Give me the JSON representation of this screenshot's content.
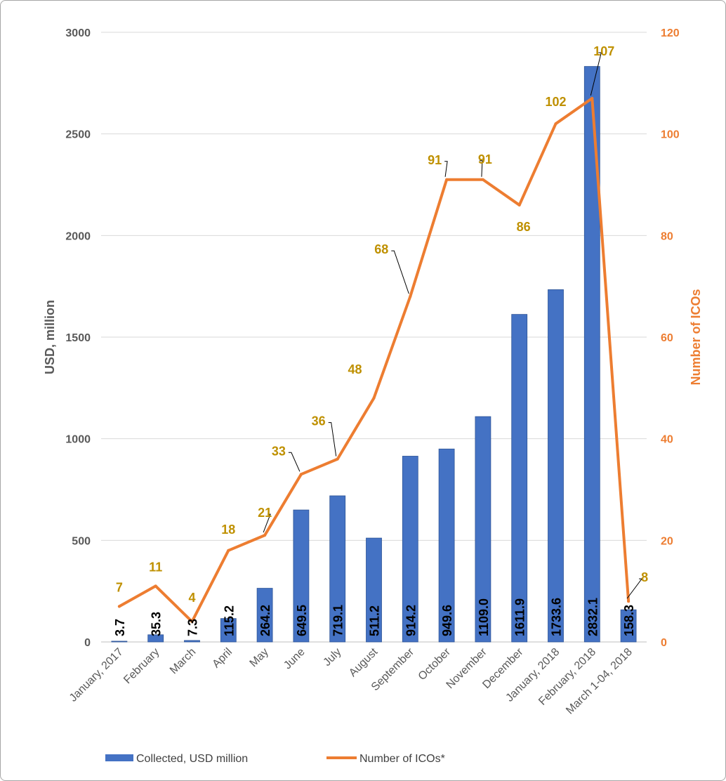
{
  "chart_data": {
    "type": "bar+line",
    "categories": [
      "January, 2017",
      "February",
      "March",
      "April",
      "May",
      "June",
      "July",
      "August",
      "September",
      "October",
      "November",
      "December",
      "January, 2018",
      "February, 2018",
      "March 1-04, 2018"
    ],
    "series": [
      {
        "name": "Collected, USD million",
        "type": "bar",
        "axis": "left",
        "values": [
          3.7,
          35.3,
          7.3,
          115.2,
          264.2,
          649.5,
          719.1,
          511.2,
          914.2,
          949.6,
          1109.0,
          1611.9,
          1733.6,
          2832.1,
          158.3
        ],
        "labels": [
          "3.7",
          "35.3",
          "7.3",
          "115.2",
          "264.2",
          "649.5",
          "719.1",
          "511.2",
          "914.2",
          "949.6",
          "1109.0",
          "1611.9",
          "1733.6",
          "2832.1",
          "158.3"
        ],
        "color": "#4472c4"
      },
      {
        "name": "Number of ICOs*",
        "type": "line",
        "axis": "right",
        "values": [
          7,
          11,
          4,
          18,
          21,
          33,
          36,
          48,
          68,
          91,
          91,
          86,
          102,
          107,
          8
        ],
        "labels": [
          "7",
          "11",
          "4",
          "18",
          "21",
          "33",
          "36",
          "48",
          "68",
          "91",
          "91",
          "86",
          "102",
          "107",
          "8"
        ],
        "color": "#ed7d31"
      }
    ],
    "ylabel": "USD, million",
    "y2label": "Number of ICOs",
    "ylim": [
      0,
      3000
    ],
    "y2lim": [
      0,
      120
    ],
    "yticks": [
      "0",
      "500",
      "1000",
      "1500",
      "2000",
      "2500",
      "3000"
    ],
    "y2ticks": [
      "0",
      "20",
      "40",
      "60",
      "80",
      "100",
      "120"
    ],
    "grid": true,
    "legend_position": "bottom",
    "label_color": "#bf9000"
  }
}
